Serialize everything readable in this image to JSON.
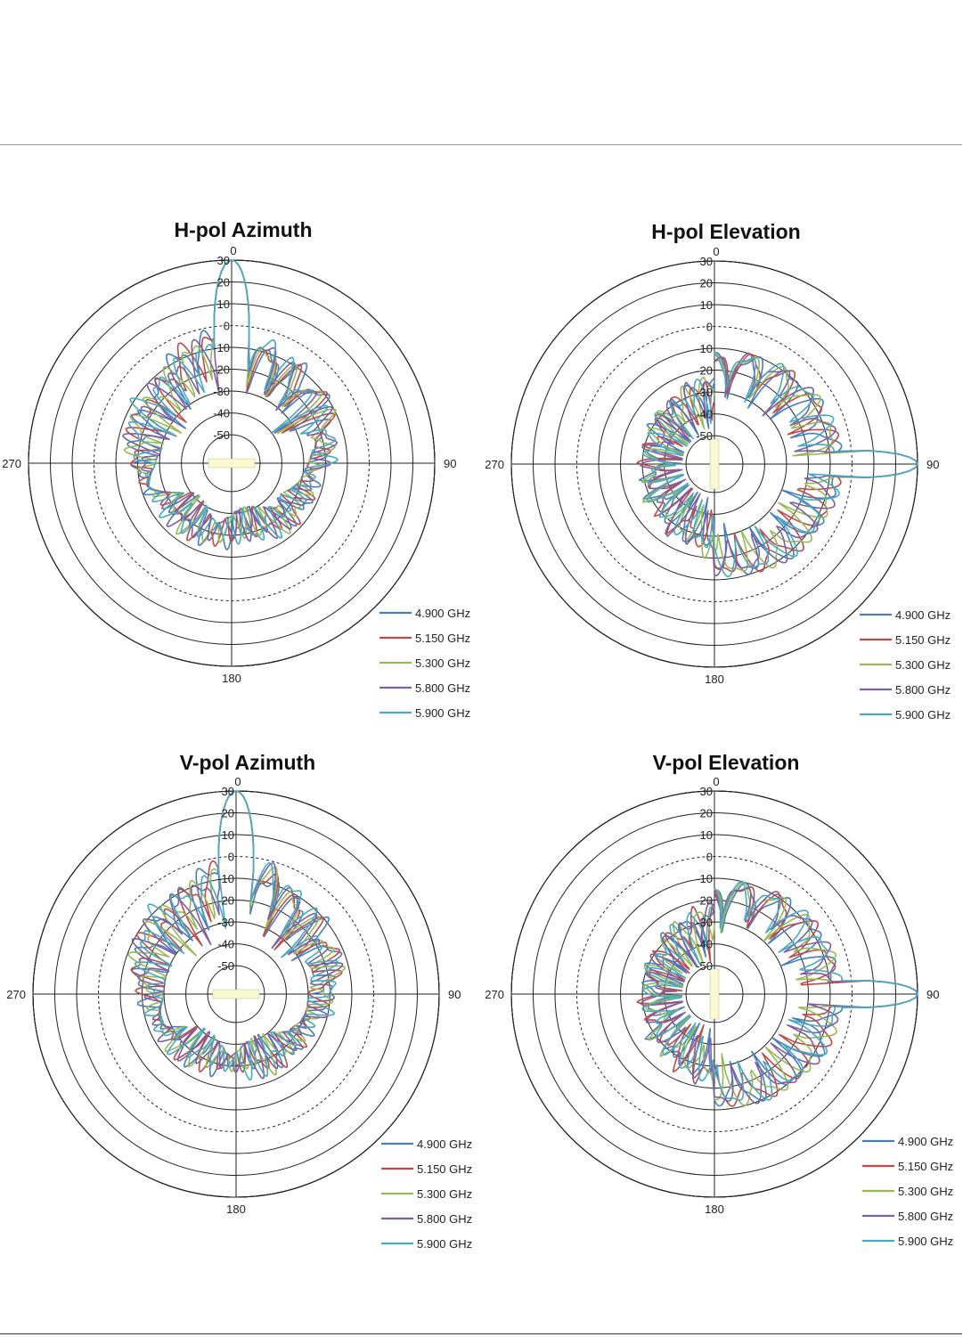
{
  "chart_data": [
    {
      "type": "polar-line",
      "title": "H-pol Azimuth",
      "radial_ticks": [
        "30",
        "20",
        "10",
        "0",
        "-10",
        "-20",
        "-30",
        "-40",
        "-50"
      ],
      "direction_labels": {
        "top": "0",
        "right": "90",
        "bottom": "180",
        "left": "270"
      },
      "rlim": [
        -50,
        30
      ],
      "dashed_ring_value": 0,
      "pattern": "azimuth",
      "series": [
        {
          "name": "4.900 GHz",
          "color": "#4a7ebb"
        },
        {
          "name": "5.150 GHz",
          "color": "#be4b48"
        },
        {
          "name": "5.300 GHz",
          "color": "#98b954"
        },
        {
          "name": "5.800 GHz",
          "color": "#7d60a0"
        },
        {
          "name": "5.900 GHz",
          "color": "#46aac5"
        }
      ]
    },
    {
      "type": "polar-line",
      "title": "H-pol Elevation",
      "radial_ticks": [
        "30",
        "20",
        "10",
        "0",
        "-10",
        "-20",
        "-30",
        "-40",
        "-50"
      ],
      "direction_labels": {
        "top": "0",
        "right": "90",
        "bottom": "180",
        "left": "270"
      },
      "rlim": [
        -50,
        30
      ],
      "dashed_ring_value": 0,
      "pattern": "elevation",
      "series": [
        {
          "name": "4.900 GHz",
          "color": "#4a7ebb"
        },
        {
          "name": "5.150 GHz",
          "color": "#be4b48"
        },
        {
          "name": "5.300 GHz",
          "color": "#98b954"
        },
        {
          "name": "5.800 GHz",
          "color": "#7d60a0"
        },
        {
          "name": "5.900 GHz",
          "color": "#46aac5"
        }
      ]
    },
    {
      "type": "polar-line",
      "title": "V-pol Azimuth",
      "radial_ticks": [
        "30",
        "20",
        "10",
        "0",
        "-10",
        "-20",
        "-30",
        "-40",
        "-50"
      ],
      "direction_labels": {
        "top": "0",
        "right": "90",
        "bottom": "180",
        "left": "270"
      },
      "rlim": [
        -50,
        30
      ],
      "dashed_ring_value": 0,
      "pattern": "azimuth",
      "series": [
        {
          "name": "4.900 GHz",
          "color": "#4a7ebb"
        },
        {
          "name": "5.150 GHz",
          "color": "#be4b48"
        },
        {
          "name": "5.300 GHz",
          "color": "#98b954"
        },
        {
          "name": "5.800 GHz",
          "color": "#7d60a0"
        },
        {
          "name": "5.900 GHz",
          "color": "#46aac5"
        }
      ]
    },
    {
      "type": "polar-line",
      "title": "V-pol Elevation",
      "radial_ticks": [
        "30",
        "20",
        "10",
        "0",
        "-10",
        "-20",
        "-30",
        "-40",
        "-50"
      ],
      "direction_labels": {
        "top": "0",
        "right": "90",
        "bottom": "180",
        "left": "270"
      },
      "rlim": [
        -50,
        30
      ],
      "dashed_ring_value": 0,
      "pattern": "elevation",
      "series": [
        {
          "name": "4.900 GHz",
          "color": "#4a7ebb"
        },
        {
          "name": "5.150 GHz",
          "color": "#be4b48"
        },
        {
          "name": "5.300 GHz",
          "color": "#98b954"
        },
        {
          "name": "5.800 GHz",
          "color": "#7d60a0"
        },
        {
          "name": "5.900 GHz",
          "color": "#46aac5"
        }
      ]
    }
  ]
}
